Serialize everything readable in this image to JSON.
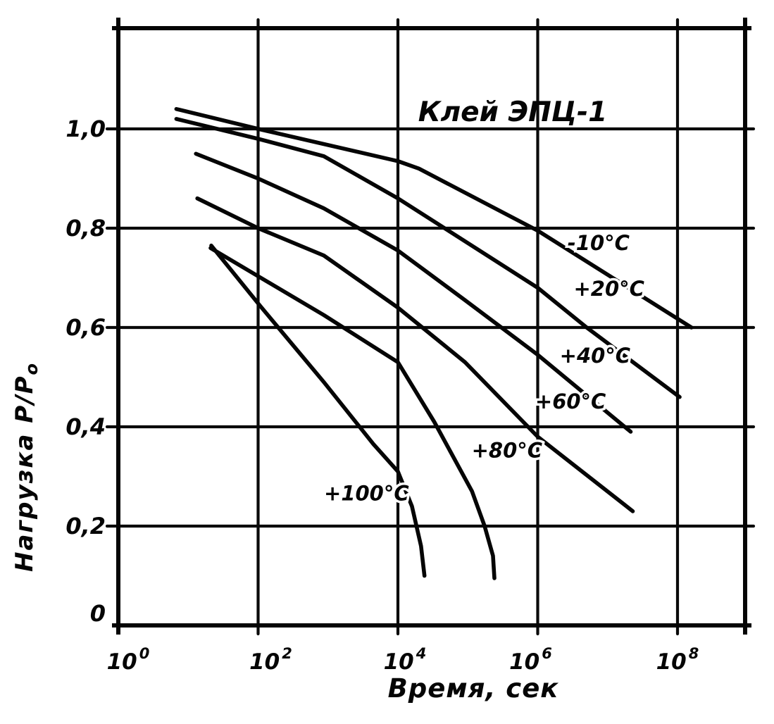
{
  "figure": {
    "background_color": "#ffffff",
    "ink_color": "#050505",
    "style": "scanned black-and-white engineering graph"
  },
  "chart_data": {
    "type": "line",
    "title": "Клей ЭПЦ-1",
    "xlabel": "Время, сек",
    "ylabel": "Нагрузка P/Po",
    "ylabel_parts": {
      "main": "Нагрузка P/P",
      "sub": "o"
    },
    "x_scale": "log10",
    "x_range_log10": [
      0,
      8.97
    ],
    "y_range": [
      0,
      1.2
    ],
    "grid": true,
    "legend_position": "labels-on-curves",
    "x_ticks": [
      {
        "base": "10",
        "exp": "0",
        "log10": 0
      },
      {
        "base": "10",
        "exp": "2",
        "log10": 2
      },
      {
        "base": "10",
        "exp": "4",
        "log10": 4
      },
      {
        "base": "10",
        "exp": "6",
        "log10": 6
      },
      {
        "base": "10",
        "exp": "8",
        "log10": 8
      }
    ],
    "y_ticks": [
      {
        "label": "1,0",
        "v": 1.0
      },
      {
        "label": "0,8",
        "v": 0.8
      },
      {
        "label": "0,6",
        "v": 0.6
      },
      {
        "label": "0,4",
        "v": 0.4
      },
      {
        "label": "0,2",
        "v": 0.2
      },
      {
        "label": "0",
        "v": 0.0
      }
    ],
    "series": [
      {
        "name": "-10C",
        "temperature_C": -10,
        "label": "-10°C",
        "label_pos": {
          "log10_t": 6.87,
          "v": 0.756
        },
        "points": [
          [
            0.83,
            1.04
          ],
          [
            2.0,
            1.0
          ],
          [
            4.0,
            0.935
          ],
          [
            4.3,
            0.92
          ],
          [
            6.0,
            0.795
          ],
          [
            8.2,
            0.6
          ]
        ]
      },
      {
        "name": "+20C",
        "temperature_C": 20,
        "label": "+20°C",
        "label_pos": {
          "log10_t": 7.02,
          "v": 0.664
        },
        "points": [
          [
            0.83,
            1.02
          ],
          [
            2.0,
            0.98
          ],
          [
            2.94,
            0.945
          ],
          [
            4.0,
            0.86
          ],
          [
            6.0,
            0.68
          ],
          [
            6.7,
            0.6
          ],
          [
            8.03,
            0.46
          ]
        ]
      },
      {
        "name": "+40C",
        "temperature_C": 40,
        "label": "+40°C",
        "label_pos": {
          "log10_t": 6.82,
          "v": 0.529
        },
        "points": [
          [
            1.11,
            0.95
          ],
          [
            2.0,
            0.9
          ],
          [
            2.94,
            0.84
          ],
          [
            4.0,
            0.755
          ],
          [
            4.96,
            0.655
          ],
          [
            6.0,
            0.545
          ],
          [
            7.33,
            0.39
          ]
        ]
      },
      {
        "name": "+60C",
        "temperature_C": 60,
        "label": "+60°C",
        "label_pos": {
          "log10_t": 6.47,
          "v": 0.437
        },
        "points": [
          [
            1.13,
            0.86
          ],
          [
            2.0,
            0.8
          ],
          [
            2.94,
            0.745
          ],
          [
            4.0,
            0.64
          ],
          [
            4.96,
            0.53
          ],
          [
            6.0,
            0.38
          ],
          [
            7.36,
            0.23
          ]
        ]
      },
      {
        "name": "+80C",
        "temperature_C": 80,
        "label": "+80°C",
        "label_pos": {
          "log10_t": 5.56,
          "v": 0.338
        },
        "points": [
          [
            1.32,
            0.76
          ],
          [
            2.94,
            0.625
          ],
          [
            4.0,
            0.53
          ],
          [
            4.52,
            0.41
          ],
          [
            5.06,
            0.27
          ],
          [
            5.24,
            0.2
          ],
          [
            5.36,
            0.14
          ],
          [
            5.38,
            0.095
          ]
        ]
      },
      {
        "name": "+100C",
        "temperature_C": 100,
        "label": "+100°C",
        "label_pos": {
          "log10_t": 3.55,
          "v": 0.252
        },
        "points": [
          [
            1.33,
            0.765
          ],
          [
            2.02,
            0.645
          ],
          [
            2.94,
            0.49
          ],
          [
            3.65,
            0.365
          ],
          [
            4.0,
            0.31
          ],
          [
            4.2,
            0.24
          ],
          [
            4.33,
            0.16
          ],
          [
            4.38,
            0.1
          ]
        ]
      }
    ]
  }
}
